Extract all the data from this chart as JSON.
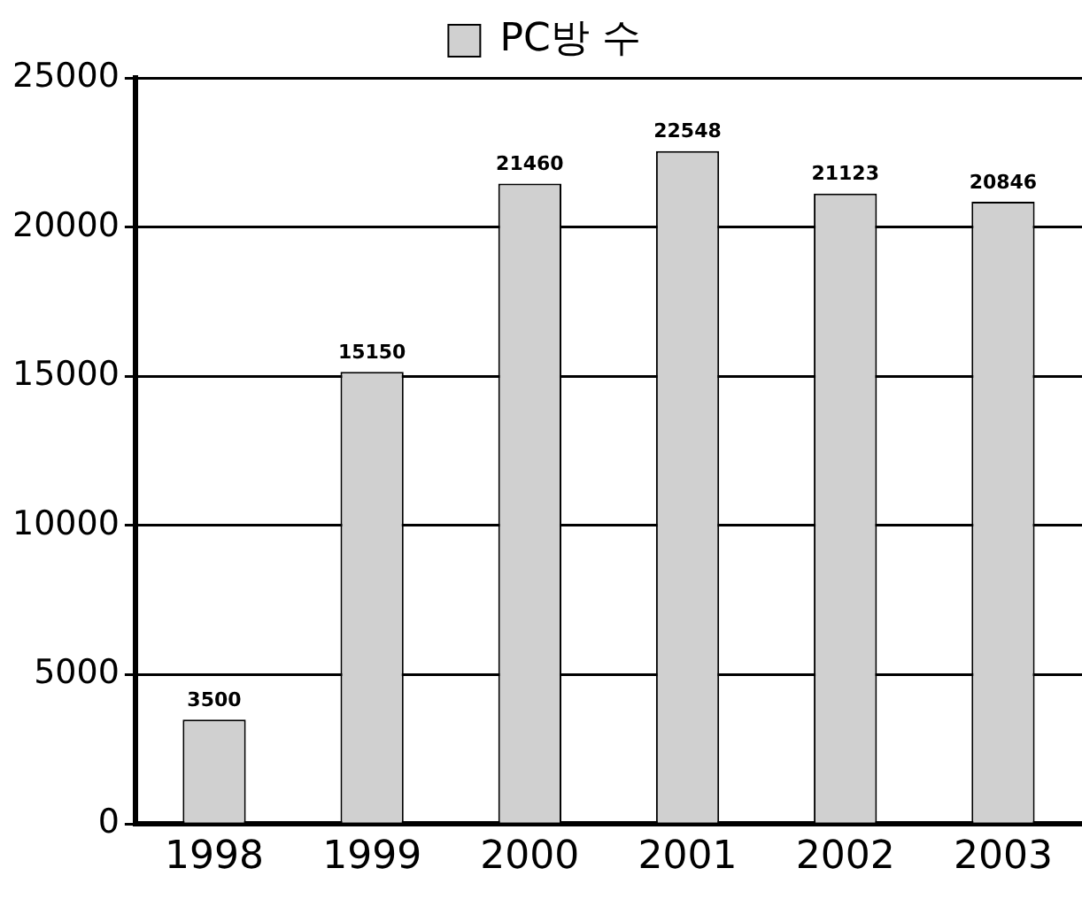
{
  "chart_data": {
    "type": "bar",
    "categories": [
      "1998",
      "1999",
      "2000",
      "2001",
      "2002",
      "2003"
    ],
    "series": [
      {
        "name": "PC방 수",
        "color": "#d0d0d0",
        "values": [
          3500,
          15150,
          21460,
          22548,
          21123,
          20846
        ]
      }
    ],
    "ylim": [
      0,
      25000
    ],
    "yticks": [
      0,
      5000,
      10000,
      15000,
      20000,
      25000
    ],
    "grid": "y",
    "legend": "top",
    "data_labels": true
  }
}
